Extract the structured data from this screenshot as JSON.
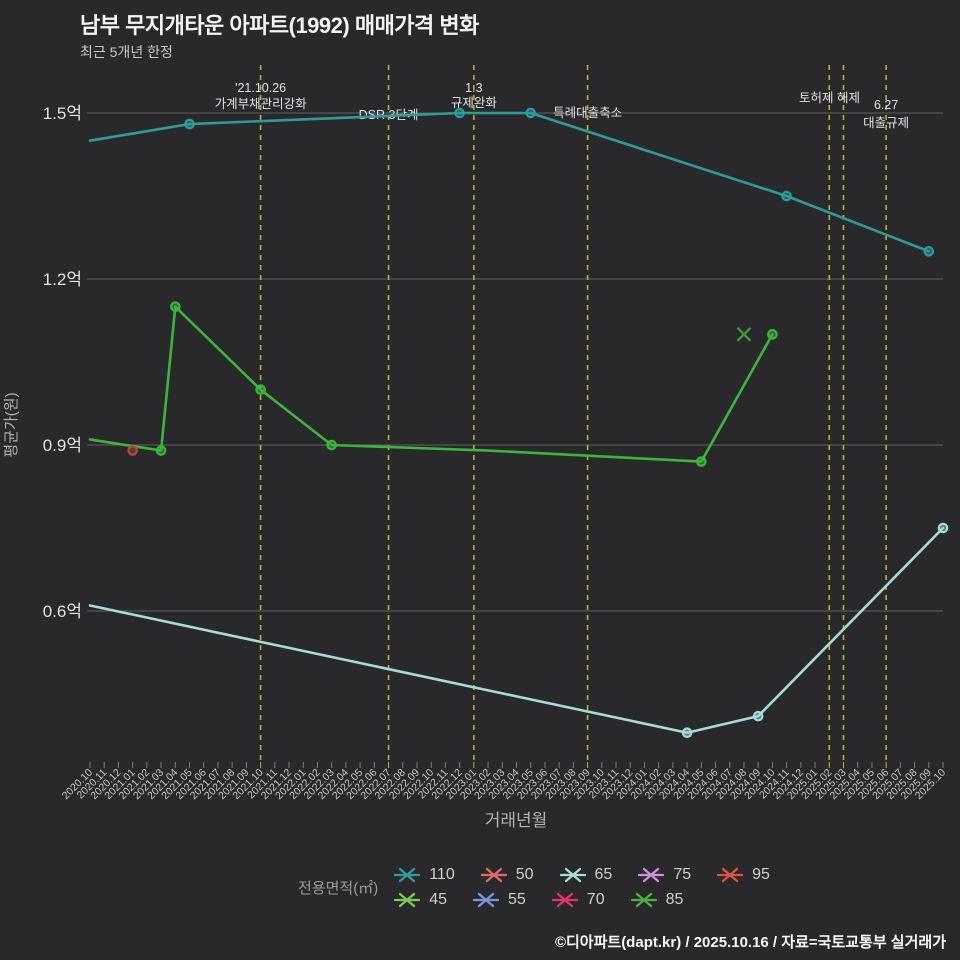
{
  "header": {
    "title": "남부 무지개타운 아파트(1992) 매매가격 변화",
    "subtitle": "최근 5개년 한정"
  },
  "footer": {
    "text": "©디아파트(dapt.kr) / 2025.10.16 / 자료=국토교통부 실거래가"
  },
  "chart_data": {
    "type": "line",
    "title": "남부 무지개타운 아파트(1992) 매매가격 변화",
    "subtitle": "최근 5개년 한정",
    "xlabel": "거래년월",
    "ylabel": "평균가(원)",
    "unit": "억",
    "grid": true,
    "legend_position": "bottom",
    "ylim": [
      0.33,
      1.59
    ],
    "y_ticks": [
      {
        "value": 1.5,
        "label": "1.5억"
      },
      {
        "value": 1.2,
        "label": "1.2억"
      },
      {
        "value": 0.9,
        "label": "0.9억"
      },
      {
        "value": 0.6,
        "label": "0.6억"
      }
    ],
    "categories": [
      "2020.10",
      "2020.11",
      "2020.12",
      "2021.01",
      "2021.02",
      "2021.03",
      "2021.04",
      "2021.05",
      "2021.06",
      "2021.07",
      "2021.08",
      "2021.09",
      "2021.10",
      "2021.11",
      "2021.12",
      "2022.01",
      "2022.02",
      "2022.03",
      "2022.04",
      "2022.05",
      "2022.06",
      "2022.07",
      "2022.08",
      "2022.09",
      "2022.10",
      "2022.11",
      "2022.12",
      "2023.01",
      "2023.02",
      "2023.03",
      "2023.04",
      "2023.05",
      "2023.06",
      "2023.07",
      "2023.08",
      "2023.09",
      "2023.10",
      "2023.11",
      "2023.12",
      "2024.01",
      "2024.02",
      "2024.03",
      "2024.04",
      "2024.05",
      "2024.06",
      "2024.07",
      "2024.08",
      "2024.09",
      "2024.10",
      "2024.11",
      "2024.12",
      "2025.01",
      "2025.02",
      "2025.03",
      "2025.04",
      "2025.05",
      "2025.06",
      "2025.07",
      "2025.08",
      "2025.09",
      "2025.10"
    ],
    "series": [
      {
        "name": "110",
        "color": "#2d9b9b",
        "marker": "circle",
        "points": [
          [
            "2020.10",
            1.45
          ],
          [
            "2021.05",
            1.48
          ],
          [
            "2022.12",
            1.5
          ],
          [
            "2023.05",
            1.5
          ],
          [
            "2024.11",
            1.35
          ],
          [
            "2025.09",
            1.25
          ]
        ]
      },
      {
        "name": "85",
        "color": "#3cb53c",
        "marker": "circle",
        "points": [
          [
            "2020.10",
            0.91
          ],
          [
            "2021.03",
            0.89
          ],
          [
            "2021.04",
            1.15
          ],
          [
            "2021.10",
            1.0
          ],
          [
            "2022.03",
            0.9
          ],
          [
            "2023.02",
            0.89,
            false
          ],
          [
            "2024.05",
            0.87
          ],
          [
            "2024.10",
            1.1
          ]
        ]
      },
      {
        "name": "65",
        "color": "#a6dbd8",
        "marker": "circle",
        "points": [
          [
            "2020.10",
            0.61
          ],
          [
            "2024.04",
            0.38
          ],
          [
            "2024.09",
            0.41
          ],
          [
            "2025.10",
            0.75
          ]
        ]
      },
      {
        "name": "50",
        "color": "#b24a42",
        "marker": "circle",
        "points": [
          [
            "2021.01",
            0.89
          ]
        ]
      },
      {
        "name": "45",
        "color": "#3f9b3f",
        "marker": "x",
        "points": [
          [
            "2024.08",
            1.1
          ]
        ]
      }
    ],
    "annotations": [
      {
        "x": "2021.10",
        "labels": [
          {
            "text": "'21.10.26",
            "y": 92
          },
          {
            "text": "가계부채관리강화",
            "y": 108
          }
        ]
      },
      {
        "x": "2022.07",
        "labels": [
          {
            "text": "DSR 3단계",
            "y": 119
          }
        ]
      },
      {
        "x": "2023.01",
        "labels": [
          {
            "text": "1.3",
            "y": 92
          },
          {
            "text": "규제완화",
            "y": 107
          }
        ]
      },
      {
        "x": "2023.09",
        "labels": [
          {
            "text": "특례대출축소",
            "y": 117
          }
        ]
      },
      {
        "x": "2025.02",
        "labels": []
      },
      {
        "x": "2025.03",
        "labels": [
          {
            "text": "토허제 해제",
            "y": 102,
            "dx": -14
          }
        ]
      },
      {
        "x": "2025.06",
        "labels": [
          {
            "text": "6.27",
            "y": 109
          },
          {
            "text": "대출규제",
            "y": 127
          }
        ]
      }
    ],
    "annotation_color": "#b5b52c",
    "legend": {
      "title": "전용면적(㎡)",
      "rows": [
        [
          {
            "label": "110",
            "color": "#339b9b"
          },
          {
            "label": "50",
            "color": "#e06a64"
          },
          {
            "label": "65",
            "color": "#abdcd8"
          },
          {
            "label": "75",
            "color": "#cf8fdf"
          },
          {
            "label": "95",
            "color": "#dd5348"
          }
        ],
        [
          {
            "label": "45",
            "color": "#7ccc55"
          },
          {
            "label": "55",
            "color": "#7b97dd"
          },
          {
            "label": "70",
            "color": "#e83369"
          },
          {
            "label": "85",
            "color": "#4cb343"
          }
        ]
      ]
    }
  }
}
